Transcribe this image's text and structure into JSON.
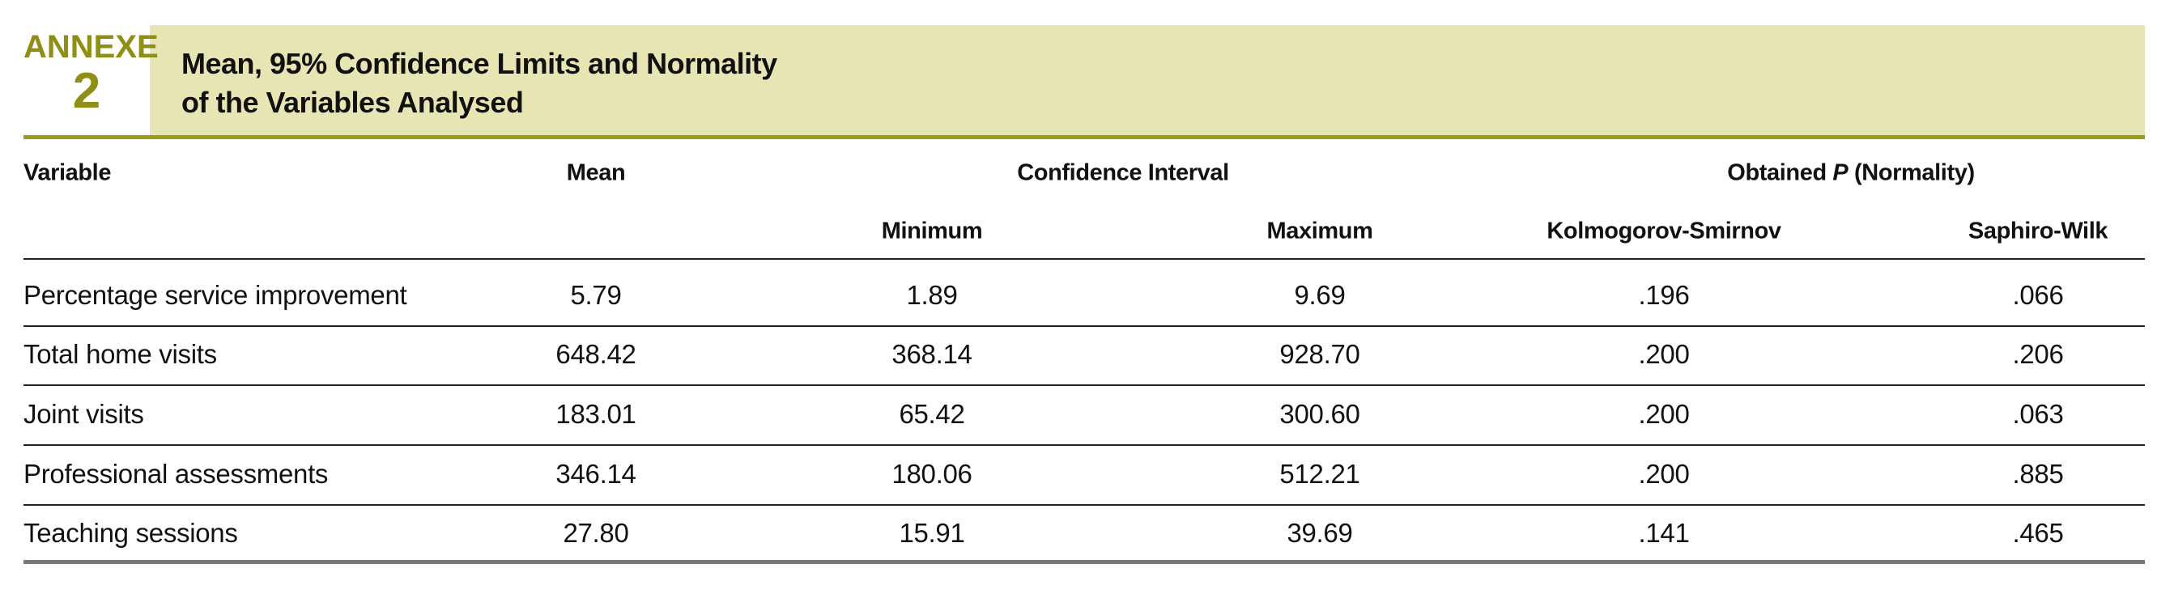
{
  "header": {
    "label": "ANNEXE",
    "number": "2",
    "title_lines": [
      "Mean, 95% Confidence Limits and Normality",
      "of the Variables Analysed"
    ]
  },
  "table": {
    "group_headers": {
      "variable": "Variable",
      "mean": "Mean",
      "confidence": "Confidence Interval",
      "obtained": {
        "before": "Obtained ",
        "italic": "P",
        "after": " (Normality)"
      }
    },
    "sub_headers": [
      "Minimum",
      "Maximum",
      "Kolmogorov-Smirnov",
      "Saphiro-Wilk"
    ],
    "rows": [
      [
        "Percentage service improvement",
        "5.79",
        "1.89",
        "9.69",
        ".196",
        ".066"
      ],
      [
        "Total home visits",
        "648.42",
        "368.14",
        "928.70",
        ".200",
        ".206"
      ],
      [
        "Joint visits",
        "183.01",
        "65.42",
        "300.60",
        ".200",
        ".063"
      ],
      [
        "Professional assessments",
        "346.14",
        "180.06",
        "512.21",
        ".200",
        ".885"
      ],
      [
        "Teaching sessions",
        "27.80",
        "15.91",
        "39.69",
        ".141",
        ".465"
      ]
    ]
  }
}
